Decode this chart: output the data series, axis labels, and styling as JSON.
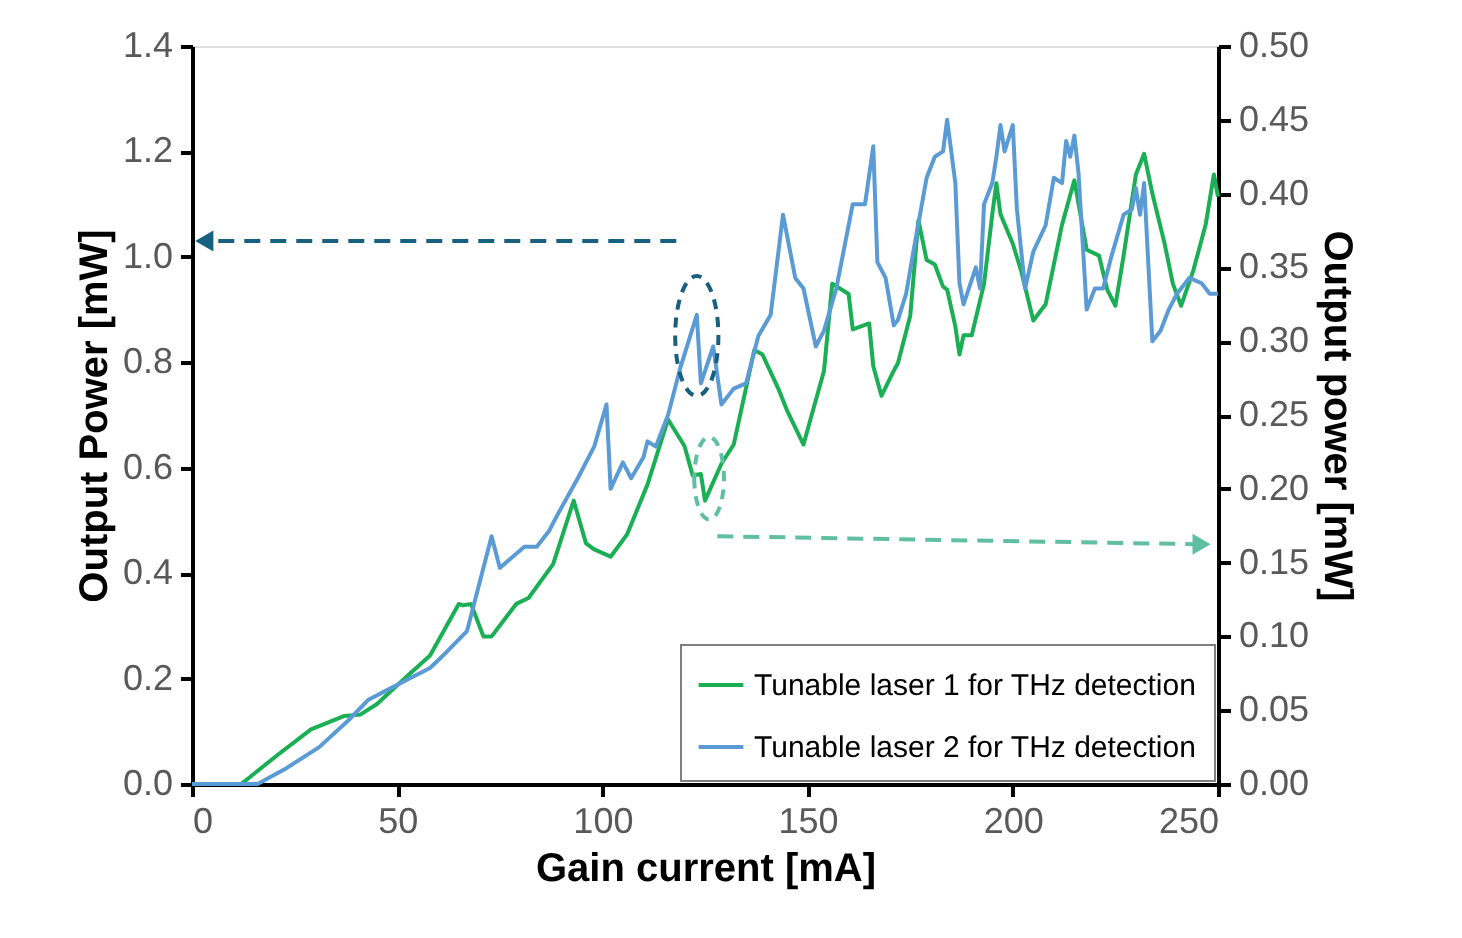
{
  "chart_data": {
    "type": "line",
    "xlabel": "Gain current [mA]",
    "ylabel": "Output Power [mW]",
    "y2label": "Output power [mW]",
    "xlim": [
      0,
      250
    ],
    "xticks": [
      0,
      50,
      100,
      150,
      200,
      250
    ],
    "ylim": [
      0,
      1.4
    ],
    "yticks": [
      {
        "value": 0,
        "label": "0.0"
      },
      {
        "value": 0.2,
        "label": "0.2"
      },
      {
        "value": 0.4,
        "label": "0.4"
      },
      {
        "value": 0.6,
        "label": "0.6"
      },
      {
        "value": 0.8,
        "label": "0.8"
      },
      {
        "value": 1,
        "label": "1.0"
      },
      {
        "value": 1.2,
        "label": "1.2"
      },
      {
        "value": 1.4,
        "label": "1.4"
      }
    ],
    "y2lim": [
      0,
      0.5
    ],
    "y2ticks": [
      {
        "value": 0,
        "label": "0.00"
      },
      {
        "value": 0.05,
        "label": "0.05"
      },
      {
        "value": 0.1,
        "label": "0.10"
      },
      {
        "value": 0.15,
        "label": "0.15"
      },
      {
        "value": 0.2,
        "label": "0.20"
      },
      {
        "value": 0.25,
        "label": "0.25"
      },
      {
        "value": 0.3,
        "label": "0.30"
      },
      {
        "value": 0.35,
        "label": "0.35"
      },
      {
        "value": 0.4,
        "label": "0.40"
      },
      {
        "value": 0.45,
        "label": "0.45"
      },
      {
        "value": 0.5,
        "label": "0.50"
      }
    ],
    "grid": false,
    "legend": "bottom right",
    "marker": "none",
    "line_style": "solid",
    "series": [
      {
        "name": "Tunable laser 1 for THz detection",
        "color": "#1aaf54",
        "axis": "y2",
        "x": [
          0,
          12,
          21,
          29,
          37,
          41,
          45,
          52,
          58,
          65,
          66,
          68,
          71,
          73,
          79,
          82,
          88,
          93,
          96,
          98,
          102,
          106,
          111,
          116,
          120,
          122,
          124,
          125,
          129,
          132,
          137,
          139,
          143,
          145,
          149,
          154,
          156,
          160,
          161,
          165,
          166,
          168,
          171,
          172,
          175,
          177,
          179,
          181,
          183,
          184,
          186,
          187,
          188,
          190,
          193,
          195,
          196,
          197,
          200,
          202,
          205,
          208,
          212,
          215,
          218,
          221,
          223,
          225,
          227,
          230,
          232,
          234,
          237,
          239,
          241,
          244,
          247,
          249,
          250
        ],
        "values": [
          0,
          0,
          0.02,
          0.037,
          0.046,
          0.047,
          0.054,
          0.072,
          0.087,
          0.122,
          0.121,
          0.122,
          0.1,
          0.1,
          0.122,
          0.126,
          0.149,
          0.192,
          0.163,
          0.159,
          0.154,
          0.169,
          0.203,
          0.247,
          0.229,
          0.209,
          0.21,
          0.192,
          0.217,
          0.23,
          0.294,
          0.291,
          0.267,
          0.253,
          0.23,
          0.28,
          0.339,
          0.332,
          0.308,
          0.312,
          0.283,
          0.263,
          0.28,
          0.285,
          0.317,
          0.382,
          0.355,
          0.352,
          0.337,
          0.335,
          0.31,
          0.291,
          0.304,
          0.304,
          0.339,
          0.386,
          0.407,
          0.386,
          0.366,
          0.348,
          0.314,
          0.325,
          0.379,
          0.409,
          0.362,
          0.358,
          0.335,
          0.324,
          0.358,
          0.413,
          0.427,
          0.4,
          0.366,
          0.339,
          0.324,
          0.348,
          0.379,
          0.413,
          0.398
        ]
      },
      {
        "name": "Tunable laser 2 for THz detection",
        "color": "#5b9bd5",
        "axis": "y",
        "x": [
          0,
          16,
          23,
          31,
          38,
          43,
          48,
          53,
          58,
          62,
          67,
          73,
          75,
          81,
          84,
          87,
          89,
          94,
          98,
          101,
          102,
          105,
          107,
          110,
          111,
          113,
          116,
          119,
          123,
          124,
          127,
          129,
          132,
          135,
          138,
          141,
          144,
          147,
          149,
          152,
          154,
          157,
          161,
          164,
          166,
          167,
          169,
          171,
          172,
          174,
          176,
          179,
          181,
          183,
          184,
          186,
          187,
          188,
          191,
          192,
          193,
          195,
          196,
          197,
          198,
          200,
          201,
          203,
          205,
          208,
          210,
          212,
          213,
          214,
          215,
          216,
          218,
          220,
          222,
          224,
          227,
          229,
          230,
          231,
          232,
          234,
          236,
          238,
          240,
          243,
          246,
          248,
          250
        ],
        "values": [
          0,
          0,
          0.03,
          0.07,
          0.12,
          0.16,
          0.18,
          0.2,
          0.22,
          0.25,
          0.29,
          0.47,
          0.41,
          0.45,
          0.45,
          0.48,
          0.51,
          0.58,
          0.64,
          0.72,
          0.56,
          0.61,
          0.58,
          0.62,
          0.65,
          0.64,
          0.7,
          0.79,
          0.89,
          0.76,
          0.83,
          0.72,
          0.75,
          0.76,
          0.85,
          0.89,
          1.08,
          0.96,
          0.94,
          0.83,
          0.86,
          0.94,
          1.1,
          1.1,
          1.21,
          0.99,
          0.96,
          0.87,
          0.88,
          0.93,
          1.02,
          1.15,
          1.19,
          1.2,
          1.26,
          1.14,
          0.95,
          0.91,
          0.98,
          0.94,
          1.1,
          1.14,
          1.19,
          1.25,
          1.2,
          1.25,
          1.09,
          0.94,
          1.01,
          1.06,
          1.15,
          1.14,
          1.22,
          1.19,
          1.23,
          1.16,
          0.9,
          0.94,
          0.94,
          1.0,
          1.08,
          1.09,
          1.13,
          1.08,
          1.14,
          0.84,
          0.86,
          0.9,
          0.93,
          0.96,
          0.95,
          0.93,
          0.93
        ]
      }
    ]
  }
}
